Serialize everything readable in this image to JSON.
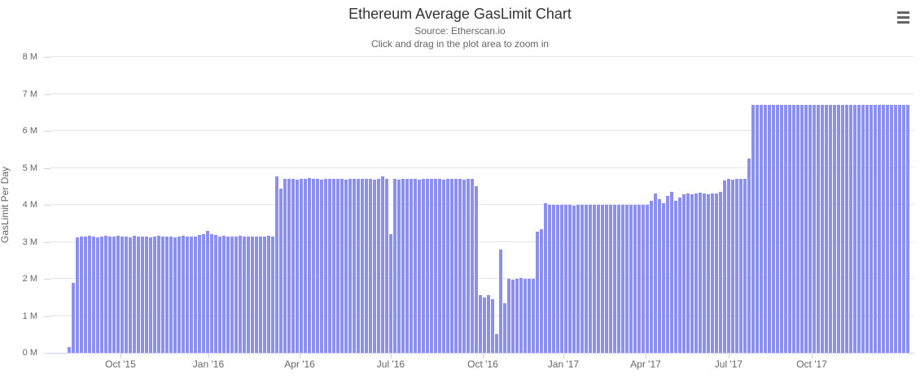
{
  "header": {
    "title": "Ethereum Average GasLimit Chart",
    "subtitle": "Source: Etherscan.io",
    "hint": "Click and drag in the plot area to zoom in"
  },
  "context_menu": {
    "icon": "hamburger-icon"
  },
  "chart_data": {
    "type": "bar",
    "title": "Ethereum Average GasLimit Chart",
    "subtitle": "Source: Etherscan.io",
    "annotation": "Click and drag in the plot area to zoom in",
    "xlabel": "",
    "ylabel": "GasLimit Per Day",
    "y_unit": "M",
    "ylim": [
      0,
      8000000
    ],
    "grid": "horizontal",
    "legend_position": "none",
    "bar_color": "#8c90ec",
    "axis_line_color": "#ccd6eb",
    "grid_color": "#e6e6e6",
    "ytick_labels": [
      "0 M",
      "1 M",
      "2 M",
      "3 M",
      "4 M",
      "5 M",
      "6 M",
      "7 M",
      "8 M"
    ],
    "xticks": [
      {
        "label": "Oct '15",
        "pos": 0.0811
      },
      {
        "label": "Jan '16",
        "pos": 0.183
      },
      {
        "label": "Apr '16",
        "pos": 0.2887
      },
      {
        "label": "Jul '16",
        "pos": 0.3943
      },
      {
        "label": "Oct '16",
        "pos": 0.5009
      },
      {
        "label": "Jan '17",
        "pos": 0.5943
      },
      {
        "label": "Apr '17",
        "pos": 0.6896
      },
      {
        "label": "Jul '17",
        "pos": 0.7858
      },
      {
        "label": "Oct '17",
        "pos": 0.8821
      }
    ],
    "x_range": [
      "Aug 2015",
      "Dec 2017"
    ],
    "series_name": "GasLimit Per Day",
    "values_millions": [
      0.15,
      1.9,
      3.12,
      3.15,
      3.14,
      3.16,
      3.15,
      3.13,
      3.15,
      3.17,
      3.15,
      3.14,
      3.16,
      3.15,
      3.15,
      3.13,
      3.16,
      3.15,
      3.14,
      3.15,
      3.12,
      3.15,
      3.16,
      3.14,
      3.15,
      3.15,
      3.13,
      3.15,
      3.16,
      3.15,
      3.14,
      3.15,
      3.18,
      3.22,
      3.3,
      3.2,
      3.18,
      3.15,
      3.16,
      3.14,
      3.15,
      3.15,
      3.16,
      3.15,
      3.14,
      3.15,
      3.15,
      3.14,
      3.15,
      3.16,
      3.15,
      4.78,
      4.45,
      4.7,
      4.71,
      4.7,
      4.69,
      4.7,
      4.7,
      4.72,
      4.7,
      4.7,
      4.69,
      4.7,
      4.71,
      4.7,
      4.7,
      4.7,
      4.69,
      4.7,
      4.7,
      4.71,
      4.7,
      4.7,
      4.7,
      4.69,
      4.7,
      4.76,
      4.7,
      3.2,
      4.7,
      4.69,
      4.7,
      4.71,
      4.7,
      4.7,
      4.69,
      4.7,
      4.7,
      4.71,
      4.7,
      4.7,
      4.69,
      4.7,
      4.71,
      4.7,
      4.7,
      4.69,
      4.7,
      4.7,
      4.5,
      1.55,
      1.5,
      1.55,
      1.45,
      0.5,
      2.8,
      1.35,
      2.0,
      1.98,
      2.0,
      2.02,
      2.0,
      1.99,
      2.0,
      3.28,
      3.35,
      4.05,
      4.0,
      3.99,
      4.0,
      4.01,
      4.0,
      4.0,
      3.98,
      4.0,
      4.0,
      4.01,
      4.0,
      3.99,
      4.0,
      4.0,
      4.0,
      4.01,
      3.99,
      4.0,
      4.0,
      4.0,
      4.01,
      4.0,
      3.99,
      4.0,
      4.0,
      4.12,
      4.3,
      4.15,
      4.05,
      4.25,
      4.35,
      4.1,
      4.2,
      4.28,
      4.3,
      4.28,
      4.3,
      4.32,
      4.3,
      4.28,
      4.3,
      4.3,
      4.35,
      4.65,
      4.7,
      4.68,
      4.7,
      4.7,
      4.7,
      5.25,
      6.7,
      6.7,
      6.7,
      6.7,
      6.7,
      6.7,
      6.7,
      6.7,
      6.7,
      6.7,
      6.7,
      6.7,
      6.7,
      6.7,
      6.7,
      6.7,
      6.7,
      6.7,
      6.7,
      6.7,
      6.7,
      6.7,
      6.7,
      6.7,
      6.7,
      6.7,
      6.7,
      6.7,
      6.7,
      6.7,
      6.7,
      6.7,
      6.7,
      6.7,
      6.7,
      6.7,
      6.7,
      6.7,
      6.7
    ]
  }
}
